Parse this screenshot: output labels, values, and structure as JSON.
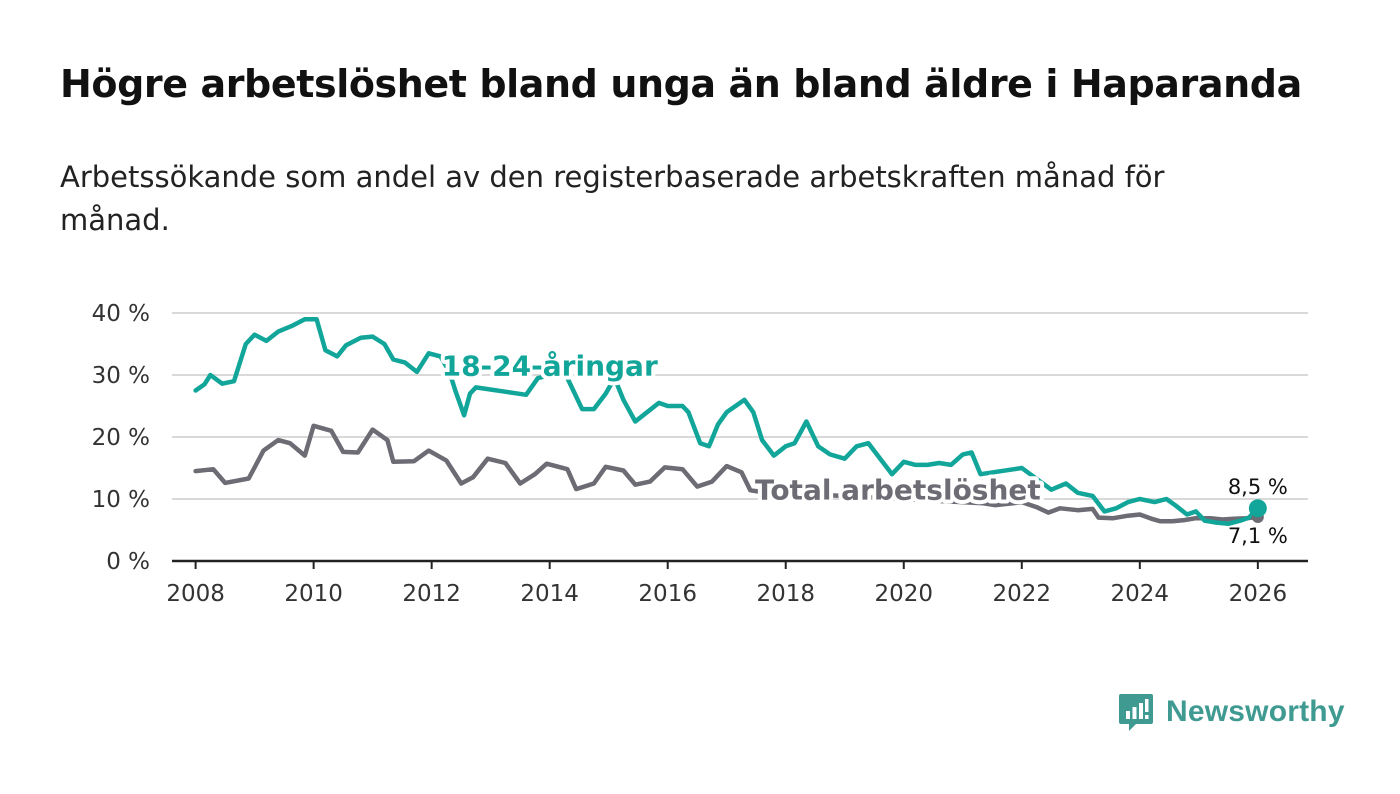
{
  "title": "Högre arbetslöshet bland unga än bland äldre i Haparanda",
  "subtitle": "Arbetssökande som andel av den registerbaserade arbetskraften månad för månad.",
  "brand": {
    "name": "Newsworthy",
    "icon": "newsworthy-logo-icon",
    "color": "#3f9a92"
  },
  "chart_data": {
    "type": "line",
    "title": "Högre arbetslöshet bland unga än bland äldre i Haparanda",
    "xlabel": "",
    "ylabel": "",
    "xlim": [
      2007.6,
      2026.85
    ],
    "ylim": [
      0,
      40
    ],
    "x_ticks": [
      2008,
      2010,
      2012,
      2014,
      2016,
      2018,
      2020,
      2022,
      2024,
      2026
    ],
    "x_tick_labels": [
      "2008",
      "2010",
      "2012",
      "2014",
      "2016",
      "2018",
      "2020",
      "2022",
      "2024",
      "2026"
    ],
    "y_ticks": [
      0,
      10,
      20,
      30,
      40
    ],
    "y_tick_labels": [
      "0 %",
      "10 %",
      "20 %",
      "30 %",
      "40 %"
    ],
    "grid": true,
    "series": [
      {
        "name": "Total arbetslöshet",
        "label": "Total arbetslöshet",
        "color": "#6d6b73",
        "end_value_label": "7,1 %",
        "points": [
          [
            2008.0,
            14.5
          ],
          [
            2008.3,
            14.8
          ],
          [
            2008.5,
            12.6
          ],
          [
            2008.9,
            13.3
          ],
          [
            2009.15,
            17.8
          ],
          [
            2009.4,
            19.5
          ],
          [
            2009.6,
            19.0
          ],
          [
            2009.85,
            17.0
          ],
          [
            2010.0,
            21.8
          ],
          [
            2010.3,
            21.0
          ],
          [
            2010.5,
            17.6
          ],
          [
            2010.75,
            17.5
          ],
          [
            2011.0,
            21.2
          ],
          [
            2011.25,
            19.5
          ],
          [
            2011.35,
            16.0
          ],
          [
            2011.7,
            16.1
          ],
          [
            2011.95,
            17.8
          ],
          [
            2012.25,
            16.2
          ],
          [
            2012.5,
            12.5
          ],
          [
            2012.7,
            13.5
          ],
          [
            2012.95,
            16.5
          ],
          [
            2013.25,
            15.8
          ],
          [
            2013.5,
            12.5
          ],
          [
            2013.75,
            14.0
          ],
          [
            2013.95,
            15.7
          ],
          [
            2014.3,
            14.8
          ],
          [
            2014.45,
            11.6
          ],
          [
            2014.75,
            12.5
          ],
          [
            2014.95,
            15.2
          ],
          [
            2015.25,
            14.6
          ],
          [
            2015.45,
            12.3
          ],
          [
            2015.7,
            12.8
          ],
          [
            2015.95,
            15.1
          ],
          [
            2016.25,
            14.8
          ],
          [
            2016.5,
            12.0
          ],
          [
            2016.75,
            12.8
          ],
          [
            2017.0,
            15.3
          ],
          [
            2017.25,
            14.3
          ],
          [
            2017.4,
            11.4
          ],
          [
            2017.55,
            11.2
          ],
          [
            2021.35,
            9.3
          ],
          [
            2021.55,
            9.0
          ],
          [
            2021.85,
            9.3
          ],
          [
            2022.0,
            9.5
          ],
          [
            2022.25,
            8.7
          ],
          [
            2022.45,
            7.8
          ],
          [
            2022.65,
            8.5
          ],
          [
            2022.95,
            8.2
          ],
          [
            2023.2,
            8.4
          ],
          [
            2023.3,
            7.0
          ],
          [
            2023.55,
            6.9
          ],
          [
            2023.8,
            7.3
          ],
          [
            2024.0,
            7.5
          ],
          [
            2024.2,
            6.8
          ],
          [
            2024.35,
            6.4
          ],
          [
            2024.55,
            6.4
          ],
          [
            2024.75,
            6.6
          ],
          [
            2024.95,
            6.9
          ],
          [
            2025.2,
            6.9
          ],
          [
            2025.4,
            6.7
          ],
          [
            2025.6,
            6.8
          ],
          [
            2025.8,
            6.9
          ],
          [
            2026.0,
            7.1
          ]
        ]
      },
      {
        "name": "18-24-åringar",
        "label": "18-24-åringar",
        "color": "#11a699",
        "end_value_label": "8,5 %",
        "points": [
          [
            2008.0,
            27.5
          ],
          [
            2008.15,
            28.5
          ],
          [
            2008.25,
            30.0
          ],
          [
            2008.45,
            28.6
          ],
          [
            2008.65,
            29.0
          ],
          [
            2008.85,
            35.0
          ],
          [
            2009.0,
            36.5
          ],
          [
            2009.2,
            35.5
          ],
          [
            2009.4,
            37.0
          ],
          [
            2009.65,
            38.0
          ],
          [
            2009.85,
            39.0
          ],
          [
            2010.05,
            39.0
          ],
          [
            2010.2,
            34.0
          ],
          [
            2010.4,
            33.0
          ],
          [
            2010.55,
            34.8
          ],
          [
            2010.8,
            36.0
          ],
          [
            2011.0,
            36.2
          ],
          [
            2011.2,
            35.0
          ],
          [
            2011.35,
            32.5
          ],
          [
            2011.55,
            32.0
          ],
          [
            2011.75,
            30.5
          ],
          [
            2011.95,
            33.5
          ],
          [
            2012.15,
            33.0
          ],
          [
            2012.3,
            30.5
          ],
          [
            2012.4,
            27.5
          ],
          [
            2012.55,
            23.5
          ],
          [
            2012.65,
            27.0
          ],
          [
            2012.75,
            28.0
          ],
          [
            2013.6,
            26.8
          ],
          [
            2013.8,
            29.5
          ],
          [
            2014.25,
            30.5
          ],
          [
            2014.4,
            27.5
          ],
          [
            2014.55,
            24.5
          ],
          [
            2014.75,
            24.5
          ],
          [
            2014.95,
            27.0
          ],
          [
            2015.1,
            29.5
          ],
          [
            2015.25,
            26.0
          ],
          [
            2015.45,
            22.5
          ],
          [
            2015.65,
            24.0
          ],
          [
            2015.85,
            25.5
          ],
          [
            2016.0,
            25.0
          ],
          [
            2016.25,
            25.0
          ],
          [
            2016.35,
            24.0
          ],
          [
            2016.55,
            19.0
          ],
          [
            2016.7,
            18.5
          ],
          [
            2016.85,
            22.0
          ],
          [
            2017.0,
            24.0
          ],
          [
            2017.15,
            25.0
          ],
          [
            2017.3,
            26.0
          ],
          [
            2017.45,
            24.0
          ],
          [
            2017.6,
            19.5
          ],
          [
            2017.8,
            17.0
          ],
          [
            2018.0,
            18.5
          ],
          [
            2018.15,
            19.0
          ],
          [
            2018.35,
            22.5
          ],
          [
            2018.55,
            18.5
          ],
          [
            2018.75,
            17.2
          ],
          [
            2019.0,
            16.5
          ],
          [
            2019.2,
            18.5
          ],
          [
            2019.4,
            19.0
          ],
          [
            2019.6,
            16.5
          ],
          [
            2019.8,
            14.0
          ],
          [
            2020.0,
            16.0
          ],
          [
            2020.2,
            15.5
          ],
          [
            2020.4,
            15.5
          ],
          [
            2020.6,
            15.8
          ],
          [
            2020.8,
            15.5
          ],
          [
            2021.0,
            17.2
          ],
          [
            2021.15,
            17.5
          ],
          [
            2021.3,
            14.0
          ],
          [
            2022.0,
            15.0
          ],
          [
            2022.5,
            11.5
          ],
          [
            2022.75,
            12.5
          ],
          [
            2022.95,
            11.0
          ],
          [
            2023.2,
            10.5
          ],
          [
            2023.4,
            8.0
          ],
          [
            2023.6,
            8.5
          ],
          [
            2023.8,
            9.5
          ],
          [
            2024.0,
            10.0
          ],
          [
            2024.25,
            9.5
          ],
          [
            2024.45,
            10.0
          ],
          [
            2024.6,
            9.0
          ],
          [
            2024.8,
            7.5
          ],
          [
            2024.95,
            8.0
          ],
          [
            2025.1,
            6.5
          ],
          [
            2025.3,
            6.2
          ],
          [
            2025.5,
            6.0
          ],
          [
            2025.7,
            6.5
          ],
          [
            2025.85,
            7.0
          ],
          [
            2026.0,
            8.5
          ]
        ]
      }
    ],
    "annotations": [
      {
        "text": "18-24-åringar",
        "series": "18-24-åringar",
        "anchor": [
          2014.0,
          31.5
        ]
      },
      {
        "text": "Total arbetslöshet",
        "series": "Total arbetslöshet",
        "anchor": [
          2019.9,
          11.5
        ]
      },
      {
        "text": "8,5 %",
        "series": "18-24-åringar",
        "anchor": [
          2026.0,
          8.5
        ]
      },
      {
        "text": "7,1 %",
        "series": "Total arbetslöshet",
        "anchor": [
          2026.0,
          7.1
        ]
      }
    ]
  }
}
